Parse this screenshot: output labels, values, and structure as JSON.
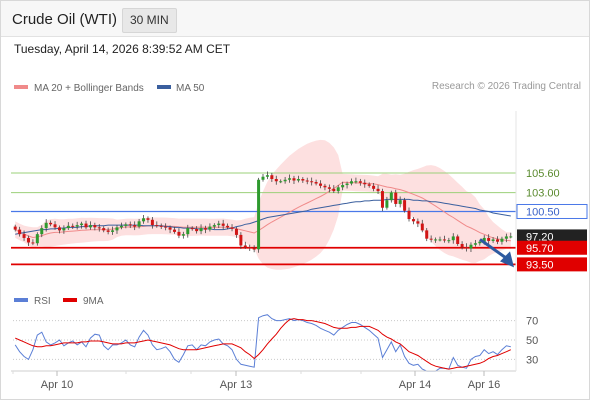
{
  "header": {
    "title": "Crude Oil (WTI)",
    "timeframe": "30 MIN"
  },
  "timestamp": "Tuesday, April 14, 2026 8:39:52 AM CET",
  "legend": [
    {
      "label": "MA 20 + Bollinger Bands",
      "color": "#f08a8a"
    },
    {
      "label": "MA 50",
      "color": "#3a5f9e"
    }
  ],
  "source": "Research © 2026 Trading Central",
  "rsi_legend": [
    {
      "label": "RSI",
      "color": "#5b7fd6"
    },
    {
      "label": "9MA",
      "color": "#e00000"
    }
  ],
  "colors": {
    "up": "#2e9a2e",
    "down": "#d11515",
    "bb_fill": "#fde0e0",
    "resistance": "#9bd07a",
    "pivot": "#4a78e8",
    "support": "#e00000",
    "last_price": "#222222",
    "arrow": "#2d5aa0"
  },
  "chart_data": [
    {
      "type": "candlestick",
      "title": "Crude Oil (WTI)",
      "x_ticks": [
        "Apr 10",
        "Apr 13",
        "Apr 14",
        "Apr 16"
      ],
      "ylim": [
        91.3,
        113.8
      ],
      "price_levels": [
        {
          "label": "105.60",
          "value": 105.6,
          "kind": "resistance"
        },
        {
          "label": "103.00",
          "value": 103.0,
          "kind": "resistance"
        },
        {
          "label": "100.50",
          "value": 100.5,
          "kind": "pivot"
        },
        {
          "label": "97.20",
          "value": 97.2,
          "kind": "last"
        },
        {
          "label": "95.70",
          "value": 95.7,
          "kind": "support"
        },
        {
          "label": "93.50",
          "value": 93.5,
          "kind": "support"
        }
      ],
      "projection": {
        "from": 97.2,
        "to": 93.5,
        "direction": "down"
      },
      "close": [
        98.1,
        97.5,
        97.0,
        96.4,
        96.3,
        97.5,
        98.3,
        99.0,
        98.8,
        98.4,
        98.0,
        98.3,
        98.6,
        98.5,
        98.7,
        98.9,
        98.4,
        98.7,
        98.4,
        98.3,
        98.0,
        97.8,
        98.0,
        98.4,
        98.6,
        98.8,
        98.7,
        98.5,
        99.2,
        99.6,
        99.4,
        98.7,
        98.6,
        98.5,
        98.4,
        98.1,
        97.8,
        97.3,
        97.5,
        98.3,
        98.2,
        97.9,
        98.3,
        98.1,
        98.5,
        98.7,
        98.9,
        98.6,
        98.4,
        98.2,
        97.4,
        96.0,
        95.8,
        95.6,
        95.5,
        104.7,
        105.1,
        105.3,
        104.8,
        104.5,
        104.5,
        104.7,
        104.9,
        104.6,
        104.8,
        104.6,
        104.5,
        104.4,
        104.2,
        103.9,
        103.7,
        103.5,
        103.2,
        103.7,
        104.0,
        104.2,
        104.5,
        104.5,
        104.3,
        104.1,
        103.9,
        103.5,
        103.2,
        101.0,
        102.0,
        103.0,
        101.5,
        102.0,
        100.6,
        99.5,
        99.2,
        98.9,
        98.0,
        96.9,
        96.8,
        96.8,
        96.8,
        96.7,
        96.7,
        97.2,
        96.2,
        95.8,
        95.6,
        96.1,
        96.3,
        96.5,
        97.0,
        96.6,
        96.8,
        96.5,
        96.9,
        97.2,
        97.2
      ],
      "ma50": [
        97.5,
        97.6,
        97.7,
        97.8,
        97.9,
        98.0,
        98.1,
        98.1,
        98.2,
        98.2,
        98.3,
        98.3,
        98.4,
        98.4,
        98.4,
        98.5,
        98.5,
        98.6,
        98.6,
        98.6,
        98.6,
        98.7,
        98.7,
        98.7,
        98.7,
        98.7,
        98.7,
        98.7,
        98.7,
        98.6,
        98.6,
        98.6,
        98.6,
        98.6,
        98.5,
        98.5,
        98.4,
        98.4,
        98.3,
        98.3,
        98.3,
        98.2,
        98.2,
        98.2,
        98.2,
        98.1,
        98.1,
        98.1,
        98.2,
        98.3,
        98.5,
        98.6,
        98.8,
        98.9,
        99.1,
        99.3,
        99.5,
        99.7,
        99.8,
        99.9,
        100.0,
        100.1,
        100.2,
        100.3,
        100.4,
        100.5,
        100.6,
        100.8,
        100.9,
        101.0,
        101.1,
        101.2,
        101.3,
        101.4,
        101.5,
        101.6,
        101.7,
        101.8,
        101.8,
        101.9,
        101.9,
        102.0,
        102.0,
        102.0,
        102.1,
        102.1,
        102.1,
        102.1,
        102.1,
        102.1,
        102.0,
        102.0,
        101.9,
        101.9,
        101.8,
        101.8,
        101.7,
        101.6,
        101.5,
        101.4,
        101.3,
        101.2,
        101.1,
        101.0,
        100.9,
        100.7,
        100.6,
        100.5,
        100.3,
        100.2,
        100.1,
        100.0,
        99.9
      ]
    },
    {
      "type": "line",
      "title": "RSI",
      "y_ticks": [
        70,
        50,
        30
      ],
      "ylim": [
        15,
        85
      ],
      "series": [
        {
          "name": "RSI",
          "values": [
            45,
            38,
            33,
            30,
            40,
            55,
            58,
            48,
            45,
            47,
            50,
            44,
            47,
            49,
            45,
            48,
            43,
            52,
            56,
            55,
            44,
            40,
            45,
            45,
            47,
            50,
            45,
            43,
            53,
            60,
            55,
            45,
            40,
            41,
            43,
            38,
            30,
            27,
            35,
            44,
            45,
            40,
            45,
            44,
            48,
            50,
            51,
            46,
            44,
            40,
            30,
            25,
            24,
            23,
            22,
            73,
            75,
            76,
            72,
            70,
            70,
            71,
            72,
            70,
            71,
            70,
            68,
            67,
            65,
            62,
            60,
            58,
            55,
            60,
            63,
            66,
            68,
            68,
            66,
            63,
            60,
            56,
            52,
            32,
            40,
            48,
            38,
            45,
            33,
            26,
            24,
            25,
            20,
            18,
            18,
            18,
            21,
            21,
            20,
            32,
            24,
            22,
            21,
            30,
            33,
            34,
            40,
            36,
            38,
            35,
            40,
            44,
            43
          ]
        },
        {
          "name": "9MA",
          "values": [
            52,
            50,
            48,
            46,
            44,
            43,
            43,
            44,
            44,
            45,
            46,
            47,
            47,
            47,
            47,
            48,
            48,
            49,
            49,
            49,
            48,
            47,
            46,
            46,
            46,
            47,
            47,
            47,
            48,
            49,
            50,
            49,
            48,
            47,
            46,
            45,
            43,
            41,
            40,
            40,
            40,
            40,
            41,
            42,
            43,
            44,
            45,
            46,
            46,
            46,
            44,
            42,
            38,
            35,
            31,
            35,
            40,
            46,
            51,
            56,
            62,
            67,
            71,
            72,
            71,
            71,
            70,
            70,
            69,
            68,
            67,
            65,
            63,
            62,
            62,
            62,
            63,
            63,
            64,
            64,
            64,
            62,
            60,
            56,
            53,
            51,
            48,
            46,
            42,
            38,
            36,
            34,
            31,
            28,
            25,
            23,
            22,
            21,
            20,
            21,
            22,
            22,
            23,
            24,
            25,
            26,
            28,
            31,
            33,
            34,
            36,
            38,
            40
          ]
        }
      ]
    }
  ]
}
